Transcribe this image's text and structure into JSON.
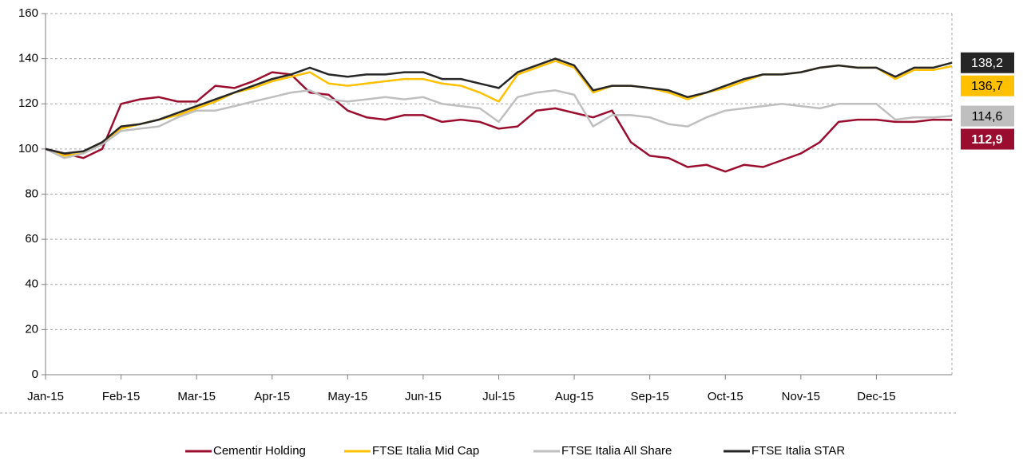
{
  "chart_data": {
    "type": "line",
    "categories": [
      "Jan-15",
      null,
      null,
      null,
      "Feb-15",
      null,
      null,
      null,
      "Mar-15",
      null,
      null,
      null,
      "Apr-15",
      null,
      null,
      null,
      "May-15",
      null,
      null,
      null,
      "Jun-15",
      null,
      null,
      null,
      "Jul-15",
      null,
      null,
      null,
      "Aug-15",
      null,
      null,
      null,
      "Sep-15",
      null,
      null,
      null,
      "Oct-15",
      null,
      null,
      null,
      "Nov-15",
      null,
      null,
      null,
      "Dec-15",
      null,
      null,
      null,
      null
    ],
    "ylim": [
      0,
      160
    ],
    "yticks": [
      0,
      20,
      40,
      60,
      80,
      100,
      120,
      140,
      160
    ],
    "grid": true,
    "legend": "bottom",
    "series": [
      {
        "name": "Cementir Holding",
        "color": "#9b0d2e",
        "label_color": "#ffffff",
        "values": [
          100,
          98,
          96,
          100,
          120,
          122,
          123,
          121,
          121,
          128,
          127,
          130,
          134,
          133,
          125,
          124,
          117,
          114,
          113,
          115,
          115,
          112,
          113,
          112,
          109,
          110,
          117,
          118,
          116,
          114,
          117,
          103,
          97,
          96,
          92,
          93,
          90,
          93,
          92,
          95,
          98,
          103,
          112,
          113,
          113,
          112,
          112,
          113,
          112.9
        ],
        "value_labels": [
          null,
          null,
          null,
          null,
          null,
          null,
          null,
          null,
          null,
          null,
          null,
          null,
          null,
          null,
          null,
          null,
          null,
          null,
          null,
          null,
          null,
          null,
          null,
          null,
          null,
          null,
          null,
          null,
          null,
          null,
          null,
          null,
          null,
          null,
          null,
          null,
          null,
          null,
          null,
          null,
          null,
          null,
          null,
          null,
          null,
          null,
          null,
          null,
          "112,9"
        ]
      },
      {
        "name": "FTSE Italia Mid Cap",
        "color": "#ffc000",
        "label_color": "#000000",
        "values": [
          100,
          97,
          98,
          103,
          109,
          111,
          113,
          115,
          118,
          121,
          125,
          127,
          130,
          132,
          134,
          129,
          128,
          129,
          130,
          131,
          131,
          129,
          128,
          125,
          121,
          133,
          136,
          139,
          136,
          125,
          128,
          128,
          127,
          125,
          122,
          125,
          127,
          130,
          133,
          133,
          134,
          136,
          137,
          136,
          136,
          131,
          135,
          135,
          136.7
        ],
        "value_labels": [
          null,
          null,
          null,
          null,
          null,
          null,
          null,
          null,
          null,
          null,
          null,
          null,
          null,
          null,
          null,
          null,
          null,
          null,
          null,
          null,
          null,
          null,
          null,
          null,
          null,
          null,
          null,
          null,
          null,
          null,
          null,
          null,
          null,
          null,
          null,
          null,
          null,
          null,
          null,
          null,
          null,
          null,
          null,
          null,
          null,
          null,
          null,
          null,
          "136,7"
        ]
      },
      {
        "name": "FTSE Italia All Share",
        "color": "#bfbfbf",
        "label_color": "#000000",
        "values": [
          100,
          96,
          98,
          102,
          108,
          109,
          110,
          114,
          117,
          117,
          119,
          121,
          123,
          125,
          126,
          122,
          121,
          122,
          123,
          122,
          123,
          120,
          119,
          118,
          112,
          123,
          125,
          126,
          124,
          110,
          115,
          115,
          114,
          111,
          110,
          114,
          117,
          118,
          119,
          120,
          119,
          118,
          120,
          120,
          120,
          113,
          114,
          114,
          114.6
        ],
        "value_labels": [
          null,
          null,
          null,
          null,
          null,
          null,
          null,
          null,
          null,
          null,
          null,
          null,
          null,
          null,
          null,
          null,
          null,
          null,
          null,
          null,
          null,
          null,
          null,
          null,
          null,
          null,
          null,
          null,
          null,
          null,
          null,
          null,
          null,
          null,
          null,
          null,
          null,
          null,
          null,
          null,
          null,
          null,
          null,
          null,
          null,
          null,
          null,
          null,
          "114,6"
        ]
      },
      {
        "name": "FTSE Italia STAR",
        "color": "#262626",
        "label_color": "#ffffff",
        "values": [
          100,
          98,
          99,
          103,
          110,
          111,
          113,
          116,
          119,
          122,
          125,
          128,
          131,
          133,
          136,
          133,
          132,
          133,
          133,
          134,
          134,
          131,
          131,
          129,
          127,
          134,
          137,
          140,
          137,
          126,
          128,
          128,
          127,
          126,
          123,
          125,
          128,
          131,
          133,
          133,
          134,
          136,
          137,
          136,
          136,
          132,
          136,
          136,
          138.2
        ],
        "value_labels": [
          null,
          null,
          null,
          null,
          null,
          null,
          null,
          null,
          null,
          null,
          null,
          null,
          null,
          null,
          null,
          null,
          null,
          null,
          null,
          null,
          null,
          null,
          null,
          null,
          null,
          null,
          null,
          null,
          null,
          null,
          null,
          null,
          null,
          null,
          null,
          null,
          null,
          null,
          null,
          null,
          null,
          null,
          null,
          null,
          null,
          null,
          null,
          null,
          "138,2"
        ]
      }
    ]
  }
}
